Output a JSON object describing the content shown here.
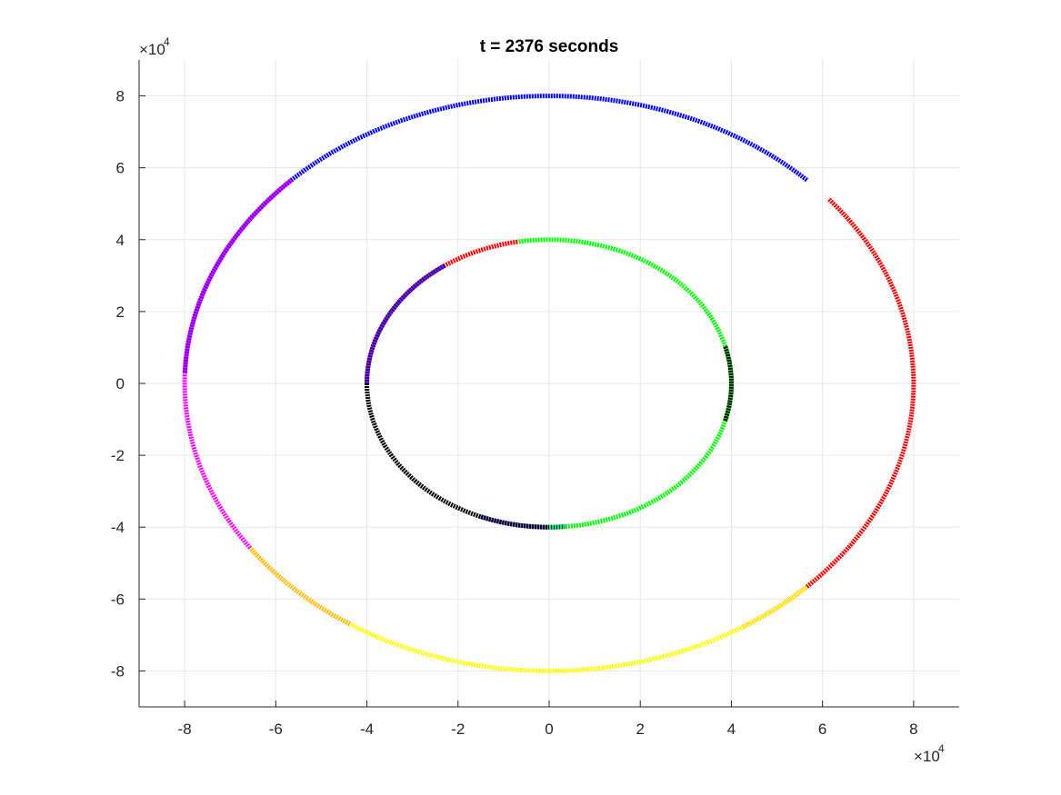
{
  "chart_data": {
    "type": "scatter",
    "title": "t = 2376 seconds",
    "xlabel": "",
    "ylabel": "",
    "xlim": [
      -90000,
      90000
    ],
    "ylim": [
      -90000,
      90000
    ],
    "grid": true,
    "legend": "none",
    "x_ticks": [
      -80000,
      -60000,
      -40000,
      -20000,
      0,
      20000,
      40000,
      60000,
      80000
    ],
    "y_ticks": [
      -80000,
      -60000,
      -40000,
      -20000,
      0,
      20000,
      40000,
      60000,
      80000
    ],
    "x_tick_labels": [
      "-8",
      "-6",
      "-4",
      "-2",
      "0",
      "2",
      "4",
      "6",
      "8"
    ],
    "y_tick_labels": [
      "-8",
      "-6",
      "-4",
      "-2",
      "0",
      "2",
      "4",
      "6",
      "8"
    ],
    "x_exponent_base": "×10",
    "x_exponent_power": "4",
    "y_exponent_base": "×10",
    "y_exponent_power": "4",
    "series": [
      {
        "color": "#0000ff",
        "radius": 80000,
        "arcs_deg": [
          [
            45,
            178
          ]
        ]
      },
      {
        "color": "#ff0000",
        "radius": 80000,
        "arcs_deg": [
          [
            -58,
            40
          ]
        ]
      },
      {
        "color": "#ff00ff",
        "radius": 80000,
        "arcs_deg": [
          [
            135,
            237
          ]
        ]
      },
      {
        "color": "#ffff00",
        "radius": 80000,
        "arcs_deg": [
          [
            215,
            315
          ]
        ]
      },
      {
        "color": "#ff0000",
        "radius": 40000,
        "arcs_deg": [
          [
            100,
            180
          ]
        ]
      },
      {
        "color": "#0000ff",
        "radius": 40000,
        "arcs_deg": [
          [
            125,
            180
          ],
          [
            248,
            275
          ]
        ]
      },
      {
        "color": "#00ff00",
        "radius": 40000,
        "arcs_deg": [
          [
            -90,
            100
          ]
        ]
      },
      {
        "color": "#000000",
        "radius": 40000,
        "arcs_deg": [
          [
            180,
            270
          ],
          [
            -15,
            15
          ]
        ]
      }
    ]
  }
}
